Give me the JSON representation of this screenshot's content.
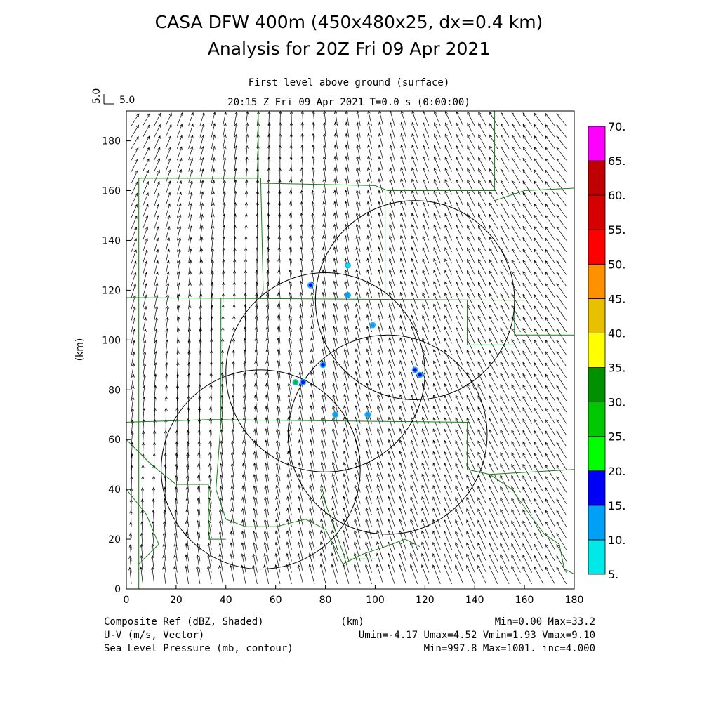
{
  "header": {
    "title_line1": "CASA DFW 400m (450x480x25, dx=0.4 km)",
    "title_line2": "Analysis for 20Z Fri 09 Apr 2021",
    "level": "First level above ground (surface)",
    "time": "20:15 Z Fri 09 Apr 2021    T=0.0 s (0:00:00)",
    "ref_vector_value": "5.0",
    "ref_vector_label": "5.0"
  },
  "footer": {
    "field1_name": "Composite Ref (dBZ, Shaded)",
    "field2_name": "U-V (m/s, Vector)",
    "field3_name": "Sea Level Pressure (mb, contour)",
    "x_unit": "(km)",
    "field1_stats": "Min=0.00 Max=33.2",
    "field2_stats": "Umin=-4.17 Umax=4.52 Vmin=1.93 Vmax=9.10",
    "field3_stats": "Min=997.8 Max=1001. inc=4.000"
  },
  "chart_data": {
    "type": "heatmap",
    "xlabel": "",
    "ylabel": "(km)",
    "xlim": [
      0,
      180
    ],
    "ylim": [
      0,
      192
    ],
    "x_ticks": [
      0,
      20,
      40,
      60,
      80,
      100,
      120,
      140,
      160,
      180
    ],
    "y_ticks": [
      0,
      20,
      40,
      60,
      80,
      100,
      120,
      140,
      160,
      180
    ],
    "colorbar": {
      "levels": [
        "5.",
        "10.",
        "15.",
        "20.",
        "25.",
        "30.",
        "35.",
        "40.",
        "45.",
        "50.",
        "55.",
        "60.",
        "65.",
        "70."
      ],
      "colors": [
        "#00e8e8",
        "#00a0f6",
        "#0000f6",
        "#00ff00",
        "#00c800",
        "#009000",
        "#ffff00",
        "#e7c000",
        "#ff9000",
        "#ff0000",
        "#d60000",
        "#c00000",
        "#ff00ff"
      ]
    },
    "radar_range_rings": [
      {
        "center": [
          54,
          48
        ],
        "radius": 40
      },
      {
        "center": [
          80,
          87
        ],
        "radius": 40
      },
      {
        "center": [
          105,
          62
        ],
        "radius": 40
      },
      {
        "center": [
          116,
          116
        ],
        "radius": 40
      }
    ],
    "echoes": [
      {
        "x": 74,
        "y": 122,
        "dbz": 15
      },
      {
        "x": 89,
        "y": 118,
        "dbz": 10
      },
      {
        "x": 89,
        "y": 130,
        "dbz": 5
      },
      {
        "x": 99,
        "y": 106,
        "dbz": 10
      },
      {
        "x": 79,
        "y": 90,
        "dbz": 15
      },
      {
        "x": 68,
        "y": 83,
        "dbz": 25
      },
      {
        "x": 71,
        "y": 83,
        "dbz": 15
      },
      {
        "x": 116,
        "y": 88,
        "dbz": 15
      },
      {
        "x": 118,
        "y": 86,
        "dbz": 15
      },
      {
        "x": 84,
        "y": 70,
        "dbz": 10
      },
      {
        "x": 97,
        "y": 70,
        "dbz": 10
      }
    ]
  }
}
